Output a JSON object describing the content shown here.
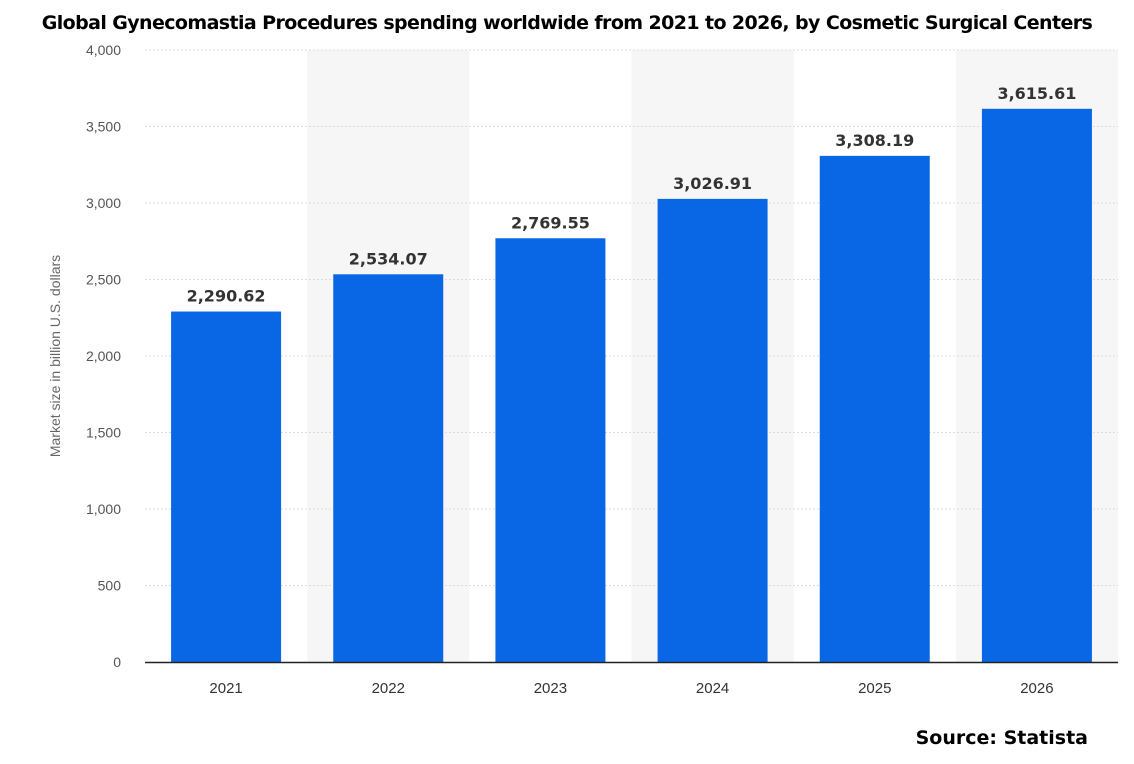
{
  "chart_data": {
    "type": "bar",
    "title": "Global Gynecomastia Procedures spending worldwide from 2021 to 2026, by Cosmetic Surgical Centers",
    "xlabel": "",
    "ylabel": "Market size in billion U.S. dollars",
    "categories": [
      "2021",
      "2022",
      "2023",
      "2024",
      "2025",
      "2026"
    ],
    "values": [
      2290.62,
      2534.07,
      2769.55,
      3026.91,
      3308.19,
      3615.61
    ],
    "data_labels": [
      "2,290.62",
      "2,534.07",
      "2,769.55",
      "3,026.91",
      "3,308.19",
      "3,615.61"
    ],
    "ylim": [
      0,
      4000
    ],
    "yticks": [
      0,
      500,
      1000,
      1500,
      2000,
      2500,
      3000,
      3500,
      4000
    ],
    "ytick_labels": [
      "0",
      "500",
      "1,000",
      "1,500",
      "2,000",
      "2,500",
      "3,000",
      "3,500",
      "4,000"
    ],
    "grid": true,
    "bar_color": "#0967e6",
    "band_color": "#f6f6f6",
    "source": "Source: Statista"
  }
}
